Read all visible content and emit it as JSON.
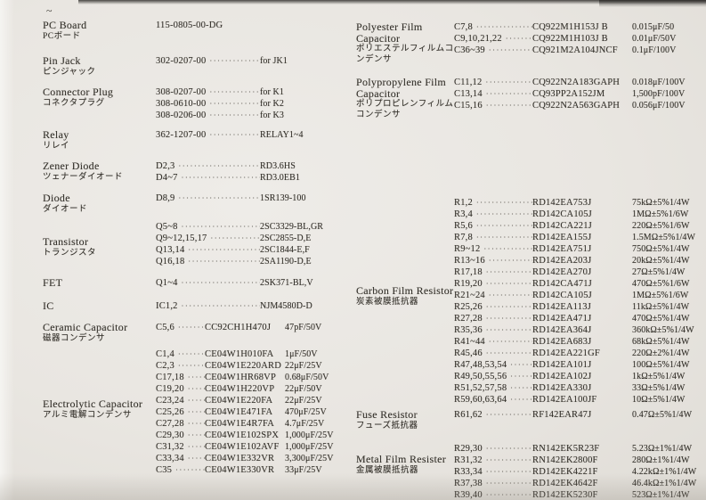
{
  "colors": {
    "paper": "#e9e6e1",
    "ink": "#35322c"
  },
  "page_mark": "~",
  "left_sections": [
    {
      "label_en": "PC Board",
      "label_jp": "PCボード",
      "rows": [
        {
          "ref": "115-0805-00-DG",
          "value": ""
        }
      ]
    },
    {
      "label_en": "Pin Jack",
      "label_jp": "ピンジャック",
      "rows": [
        {
          "ref": "302-0207-00",
          "value": "for JK1"
        }
      ]
    },
    {
      "label_en": "Connector Plug",
      "label_jp": "コネクタプラグ",
      "rows": [
        {
          "ref": "308-0207-00",
          "value": "for K1"
        },
        {
          "ref": "308-0610-00",
          "value": "for K2"
        },
        {
          "ref": "308-0206-00",
          "value": "for K3"
        }
      ]
    },
    {
      "label_en": "Relay",
      "label_jp": "リレイ",
      "rows": [
        {
          "ref": "362-1207-00",
          "value": "RELAY1~4"
        }
      ]
    },
    {
      "label_en": "Zener Diode",
      "label_jp": "ツェナーダイオード",
      "rows": [
        {
          "ref": "D2,3",
          "value": "RD3.6HS"
        },
        {
          "ref": "D4~7",
          "value": "RD3.0EB1"
        }
      ]
    },
    {
      "label_en": "Diode",
      "label_jp": "ダイオード",
      "rows": [
        {
          "ref": "D8,9",
          "value": "1SR139-100"
        }
      ]
    },
    {
      "label_en": "Transistor",
      "label_jp": "トランジスタ",
      "rows": [
        {
          "ref": "Q5~8",
          "value": "2SC3329-BL,GR"
        },
        {
          "ref": "Q9~12,15,17",
          "value": "2SC2855-D,E"
        },
        {
          "ref": "Q13,14",
          "value": "2SC1844-E,F"
        },
        {
          "ref": "Q16,18",
          "value": "2SA1190-D,E"
        }
      ]
    },
    {
      "label_en": "FET",
      "rows": [
        {
          "ref": "Q1~4",
          "value": "2SK371-BL,V"
        }
      ]
    },
    {
      "label_en": "IC",
      "rows": [
        {
          "ref": "IC1,2",
          "value": "NJM4580D-D"
        }
      ]
    },
    {
      "label_en": "Ceramic Capacitor",
      "label_jp": "磁器コンデンサ",
      "rows": [
        {
          "ref": "C5,6",
          "part": "CC92CH1H470J",
          "value": "47pF/50V"
        }
      ]
    },
    {
      "label_en": "Electrolytic Capacitor",
      "label_jp": "アルミ電解コンデンサ",
      "rows": [
        {
          "ref": "C1,4",
          "part": "CE04W1H010FA",
          "value": "1μF/50V"
        },
        {
          "ref": "C2,3",
          "part": "CE04W1E220ARD",
          "value": "22μF/25V"
        },
        {
          "ref": "C17,18",
          "part": "CE04W1HR68VP",
          "value": "0.68μF/50V"
        },
        {
          "ref": "C19,20",
          "part": "CE04W1H220VP",
          "value": "22μF/50V"
        },
        {
          "ref": "C23,24",
          "part": "CE04W1E220FA",
          "value": "22μF/25V"
        },
        {
          "ref": "C25,26",
          "part": "CE04W1E471FA",
          "value": "470μF/25V"
        },
        {
          "ref": "C27,28",
          "part": "CE04W1E4R7FA",
          "value": "4.7μF/25V"
        },
        {
          "ref": "C29,30",
          "part": "CE04W1E102SPX",
          "value": "1,000μF/25V"
        },
        {
          "ref": "C31,32",
          "part": "CE04W1E102AVF",
          "value": "1,000μF/25V"
        },
        {
          "ref": "C33,34",
          "part": "CE04W1E332VR",
          "value": "3,300μF/25V"
        },
        {
          "ref": "C35",
          "part": "CE04W1E330VR",
          "value": "33μF/25V"
        }
      ]
    }
  ],
  "right_sections": [
    {
      "label_en": "Polyester Film Capacitor",
      "label_jp": "ポリエステルフィルムコンデンサ",
      "rows": [
        {
          "ref": "C7,8",
          "part": "CQ922M1H153J B",
          "value": "0.015μF/50"
        },
        {
          "ref": "C9,10,21,22",
          "part": "CQ922M1H103J B",
          "value": "0.01μF/50V"
        },
        {
          "ref": "C36~39",
          "part": "CQ921M2A104JNCF",
          "value": "0.1μF/100V"
        }
      ]
    },
    {
      "label_en": "Polypropylene Film Capacitor",
      "label_jp": "ポリプロピレンフィルムコンデンサ",
      "rows": [
        {
          "ref": "C11,12",
          "part": "CQ922N2A183GAPH",
          "value": "0.018μF/100V"
        },
        {
          "ref": "C13,14",
          "part": "CQ93PP2A152JM",
          "value": "1,500pF/100V"
        },
        {
          "ref": "C15,16",
          "part": "CQ922N2A563GAPH",
          "value": "0.056μF/100V"
        }
      ]
    },
    {
      "label_en": "Carbon Film Resistor",
      "label_jp": "炭素被膜抵抗器",
      "rows": [
        {
          "ref": "R1,2",
          "part": "RD142EA753J",
          "value": "75kΩ±5%1/4W"
        },
        {
          "ref": "R3,4",
          "part": "RD142CA105J",
          "value": "1MΩ±5%1/6W"
        },
        {
          "ref": "R5,6",
          "part": "RD142CA221J",
          "value": "220Ω±5%1/6W"
        },
        {
          "ref": "R7,8",
          "part": "RD142EA155J",
          "value": "1.5MΩ±5%1/4W"
        },
        {
          "ref": "R9~12",
          "part": "RD142EA751J",
          "value": "750Ω±5%1/4W"
        },
        {
          "ref": "R13~16",
          "part": "RD142EA203J",
          "value": "20kΩ±5%1/4W"
        },
        {
          "ref": "R17,18",
          "part": "RD142EA270J",
          "value": "27Ω±5%1/4W"
        },
        {
          "ref": "R19,20",
          "part": "RD142CA471J",
          "value": "470Ω±5%1/6W"
        },
        {
          "ref": "R21~24",
          "part": "RD142CA105J",
          "value": "1MΩ±5%1/6W"
        },
        {
          "ref": "R25,26",
          "part": "RD142EA113J",
          "value": "11kΩ±5%1/4W"
        },
        {
          "ref": "R27,28",
          "part": "RD142EA471J",
          "value": "470Ω±5%1/4W"
        },
        {
          "ref": "R35,36",
          "part": "RD142EA364J",
          "value": "360kΩ±5%1/4W"
        },
        {
          "ref": "R41~44",
          "part": "RD142EA683J",
          "value": "68kΩ±5%1/4W"
        },
        {
          "ref": "R45,46",
          "part": "RD142EA221GF",
          "value": "220Ω±2%1/4W"
        },
        {
          "ref": "R47,48,53,54",
          "part": "RD142EA101J",
          "value": "100Ω±5%1/4W"
        },
        {
          "ref": "R49,50,55,56",
          "part": "RD142EA102J",
          "value": "1kΩ±5%1/4W"
        },
        {
          "ref": "R51,52,57,58",
          "part": "RD142EA330J",
          "value": "33Ω±5%1/4W"
        },
        {
          "ref": "R59,60,63,64",
          "part": "RD142EA100JF",
          "value": "10Ω±5%1/4W"
        }
      ]
    },
    {
      "label_en": "Fuse Resistor",
      "label_jp": "フューズ抵抗器",
      "rows": [
        {
          "ref": "R61,62",
          "part": "RF142EAR47J",
          "value": "0.47Ω±5%1/4W"
        }
      ]
    },
    {
      "label_en": "Metal Film Resister",
      "label_jp": "金属被膜抵抗器",
      "rows": [
        {
          "ref": "R29,30",
          "part": "RN142EK5R23F",
          "value": "5.23Ω±1%1/4W"
        },
        {
          "ref": "R31,32",
          "part": "RN142EK2800F",
          "value": "280Ω±1%1/4W"
        },
        {
          "ref": "R33,34",
          "part": "RD142EK4221F",
          "value": "4.22kΩ±1%1/4W"
        },
        {
          "ref": "R37,38",
          "part": "RD142EK4642F",
          "value": "46.4kΩ±1%1/4W"
        },
        {
          "ref": "R39,40",
          "part": "RD142EK5230F",
          "value": "523Ω±1%1/4W"
        }
      ]
    }
  ]
}
